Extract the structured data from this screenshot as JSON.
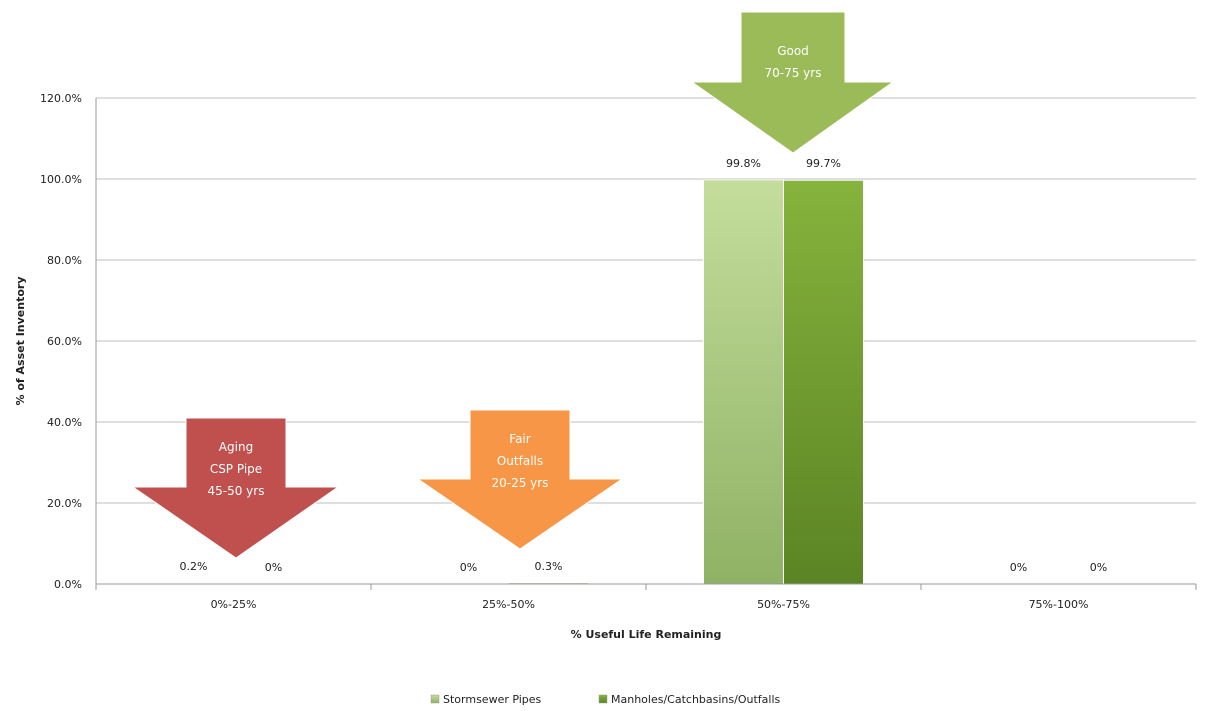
{
  "chart_data": {
    "type": "bar",
    "title": "",
    "xlabel": "% Useful Life Remaining",
    "ylabel": "% of Asset Inventory",
    "categories": [
      "0%-25%",
      "25%-50%",
      "50%-75%",
      "75%-100%"
    ],
    "ylim": [
      0,
      120
    ],
    "yticks": [
      "0.0%",
      "20.0%",
      "40.0%",
      "60.0%",
      "80.0%",
      "100.0%",
      "120.0%"
    ],
    "grid": true,
    "legend_position": "bottom",
    "series": [
      {
        "name": "Stormsewer Pipes",
        "values": [
          0.2,
          0,
          99.8,
          0
        ],
        "labels": [
          "0.2%",
          "0%",
          "99.8%",
          "0%"
        ],
        "color": "#a9c77e"
      },
      {
        "name": "Manholes/Catchbasins/Outfalls",
        "values": [
          0,
          0.3,
          99.7,
          0
        ],
        "labels": [
          "0%",
          "0.3%",
          "99.7%",
          "0%"
        ],
        "color": "#6f9a2e"
      }
    ],
    "annotations": [
      {
        "category": "0%-25%",
        "lines": [
          "Aging",
          "CSP Pipe",
          "45-50 yrs"
        ],
        "color": "#c0504d"
      },
      {
        "category": "25%-50%",
        "lines": [
          "Fair",
          "Outfalls",
          "20-25 yrs"
        ],
        "color": "#f79646"
      },
      {
        "category": "50%-75%",
        "lines": [
          "Good",
          "70-75 yrs"
        ],
        "color": "#9bbb59"
      }
    ]
  }
}
